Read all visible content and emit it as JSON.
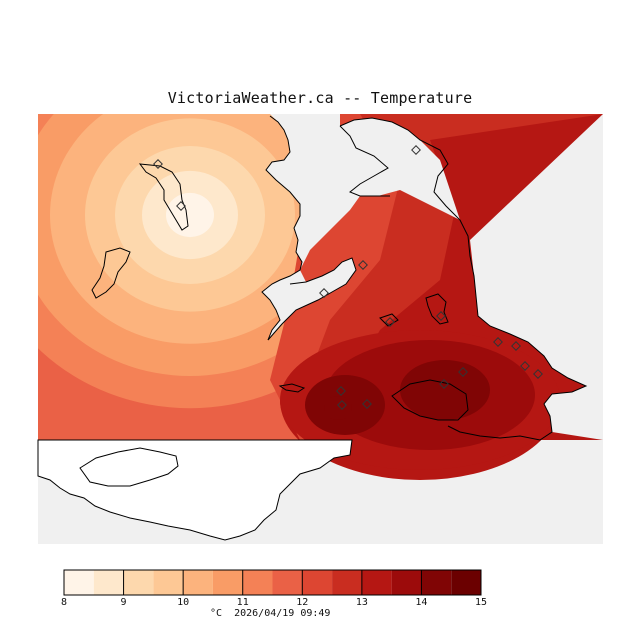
{
  "title": "VictoriaWeather.ca -- Temperature",
  "footer": {
    "unit": "°C",
    "timestamp": "2026/04/19 09:49"
  },
  "colors": {
    "background": "#ffffff",
    "no_data": "#f0f0f0",
    "coastline": "#000000",
    "station_marker": "#333333"
  },
  "legend": {
    "min": 8,
    "max": 15,
    "step": 0.5,
    "tick_labels": [
      "8",
      "9",
      "10",
      "11",
      "12",
      "13",
      "14",
      "15"
    ],
    "color_bins": [
      "#fff4e8",
      "#fee8cc",
      "#fdd8ad",
      "#fdc895",
      "#fcb37d",
      "#f99c66",
      "#f48156",
      "#ea6146",
      "#dd4632",
      "#c92d20",
      "#b51713",
      "#9c0b0b",
      "#800505",
      "#6b0000"
    ]
  },
  "chart_data": {
    "type": "heatmap",
    "variable": "Temperature",
    "unit": "°C",
    "value_range": [
      8,
      15
    ],
    "hot_spots": [
      {
        "name": "west-low",
        "value": 8.2
      },
      {
        "name": "south-central-high",
        "value": 14.2
      },
      {
        "name": "southeast-high",
        "value": 14.4
      },
      {
        "name": "northeast-warm",
        "value": 13.0
      }
    ]
  }
}
